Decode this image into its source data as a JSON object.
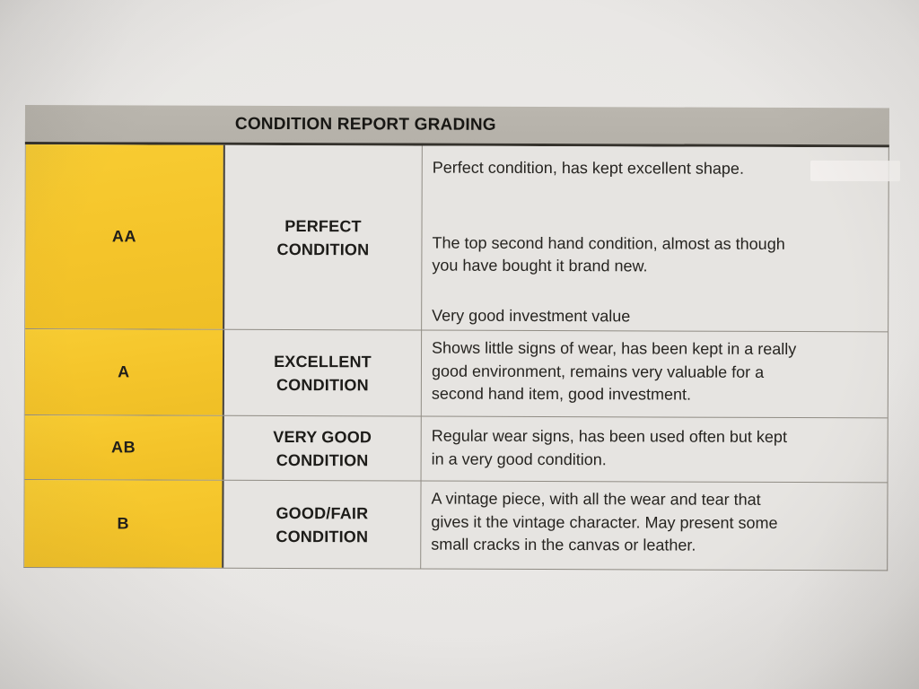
{
  "document": {
    "header": {
      "title": "CONDITION REPORT GRADING"
    },
    "rows": [
      {
        "grade": "AA",
        "label_lines": [
          "PERFECT",
          "CONDITION"
        ],
        "description": [
          [
            "Perfect condition, has kept excellent shape."
          ],
          [
            "The top second hand condition, almost as though",
            "you have bought it brand new."
          ],
          [
            "Very good investment value"
          ]
        ]
      },
      {
        "grade": "A",
        "label_lines": [
          "EXCELLENT",
          "CONDITION"
        ],
        "description": [
          [
            "Shows little signs of wear, has been kept in a really",
            "good environment, remains very valuable for a",
            "second hand item, good investment."
          ]
        ]
      },
      {
        "grade": "AB",
        "label_lines": [
          "VERY GOOD",
          "CONDITION"
        ],
        "description": [
          [
            "Regular wear signs, has been used often but kept",
            "in a very good condition."
          ]
        ]
      },
      {
        "grade": "B",
        "label_lines": [
          "GOOD/FAIR",
          "CONDITION"
        ],
        "description": [
          [
            "A vintage piece, with all the wear and tear that",
            "gives it the vintage character. May present some",
            "small cracks in the canvas or leather."
          ]
        ]
      }
    ],
    "colors": {
      "grade_column_yellow": "#f4c42a",
      "header_bar_gray": "#b5b1a9",
      "paper_background": "#e8e6e4",
      "cell_background": "#e6e4e1",
      "text": "#26241f"
    }
  }
}
